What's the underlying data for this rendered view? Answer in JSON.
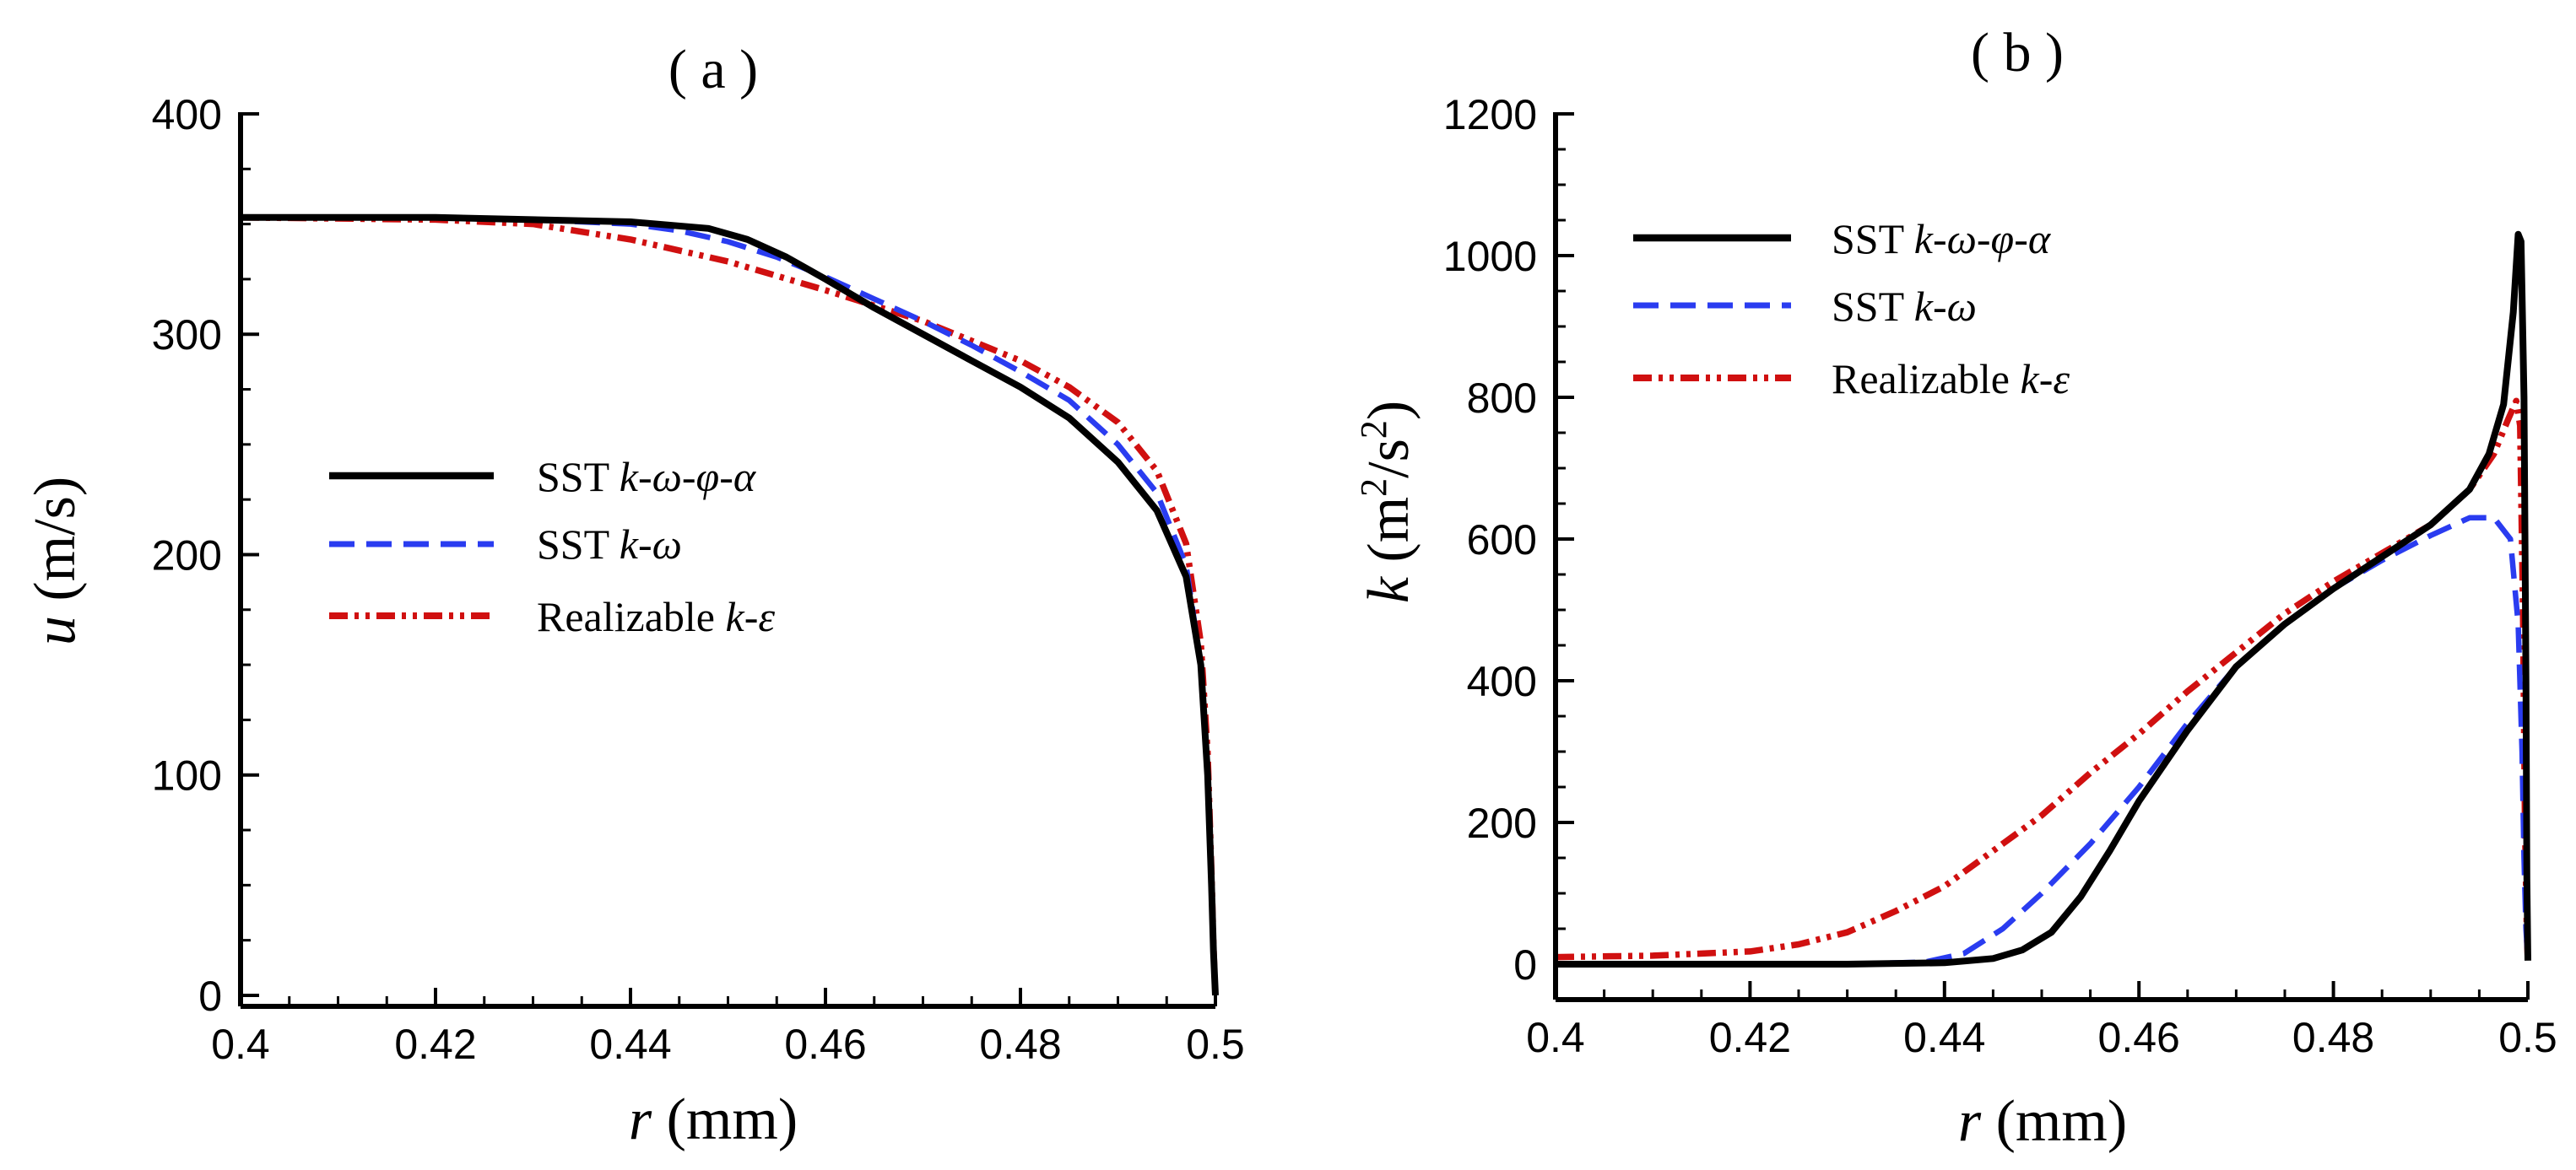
{
  "chart_data": [
    {
      "type": "line",
      "panel_label": "( a )",
      "panel_letter": "a",
      "xlabel": "r (mm)",
      "xlabel_var": "r",
      "xlabel_unit": " (mm)",
      "ylabel": "u (m/s)",
      "ylabel_var": "u",
      "ylabel_unit": " (m/s)",
      "xlim": [
        0.4,
        0.5
      ],
      "ylim": [
        -5,
        400
      ],
      "xticks": [
        "0.4",
        "0.42",
        "0.44",
        "0.46",
        "0.48",
        "0.5"
      ],
      "xtick_values": [
        0.4,
        0.42,
        0.44,
        0.46,
        0.48,
        0.5
      ],
      "yticks": [
        "0",
        "100",
        "200",
        "300",
        "400"
      ],
      "ytick_values": [
        0,
        100,
        200,
        300,
        400
      ],
      "legend_position": "center-left",
      "series": [
        {
          "name": "SST k-ω-φ-α",
          "legend_plain": "SST ",
          "legend_italic": "k-ω-φ-α",
          "color": "#000000",
          "style": "solid",
          "x": [
            0.4,
            0.42,
            0.44,
            0.448,
            0.452,
            0.456,
            0.46,
            0.465,
            0.47,
            0.475,
            0.48,
            0.485,
            0.49,
            0.494,
            0.497,
            0.4985,
            0.4992,
            0.4996,
            0.4998,
            0.5
          ],
          "y": [
            353,
            353,
            351,
            348,
            343,
            335,
            325,
            312,
            300,
            288,
            276,
            262,
            242,
            220,
            190,
            150,
            100,
            50,
            20,
            0
          ]
        },
        {
          "name": "SST k-ω",
          "legend_plain": "SST ",
          "legend_italic": "k-ω",
          "color": "#2a3cf0",
          "style": "dashed",
          "x": [
            0.4,
            0.42,
            0.43,
            0.44,
            0.445,
            0.45,
            0.455,
            0.46,
            0.465,
            0.47,
            0.475,
            0.48,
            0.485,
            0.49,
            0.494,
            0.497,
            0.4985,
            0.4992,
            0.4996,
            0.4998,
            0.5
          ],
          "y": [
            353,
            353,
            352,
            350,
            347,
            342,
            335,
            326,
            316,
            306,
            295,
            283,
            270,
            250,
            228,
            195,
            150,
            100,
            50,
            20,
            0
          ]
        },
        {
          "name": "Realizable k-ε",
          "legend_plain": "Realizable  ",
          "legend_italic": "k-ε",
          "color": "#d01010",
          "style": "dashdotdot",
          "x": [
            0.4,
            0.42,
            0.43,
            0.44,
            0.45,
            0.46,
            0.47,
            0.48,
            0.485,
            0.49,
            0.494,
            0.497,
            0.4985,
            0.4992,
            0.4996,
            0.4998,
            0.5
          ],
          "y": [
            353,
            352,
            350,
            343,
            333,
            320,
            306,
            288,
            276,
            260,
            238,
            205,
            160,
            110,
            55,
            22,
            0
          ]
        }
      ]
    },
    {
      "type": "line",
      "panel_label": "( b )",
      "panel_letter": "b",
      "xlabel": "r (mm)",
      "xlabel_var": "r",
      "xlabel_unit": " (mm)",
      "ylabel": "k (m2/s2)",
      "ylabel_var": "k",
      "ylabel_unit_pre": " (m",
      "ylabel_sup1": "2",
      "ylabel_unit_mid": "/s",
      "ylabel_sup2": "2",
      "ylabel_unit_post": ")",
      "xlim": [
        0.4,
        0.5
      ],
      "ylim": [
        -50,
        1200
      ],
      "xticks": [
        "0.4",
        "0.42",
        "0.44",
        "0.46",
        "0.48",
        "0.5"
      ],
      "xtick_values": [
        0.4,
        0.42,
        0.44,
        0.46,
        0.48,
        0.5
      ],
      "yticks": [
        "0",
        "200",
        "400",
        "600",
        "800",
        "1000",
        "1200"
      ],
      "ytick_values": [
        0,
        200,
        400,
        600,
        800,
        1000,
        1200
      ],
      "legend_position": "top-left",
      "series": [
        {
          "name": "SST k-ω-φ-α",
          "legend_plain": "SST ",
          "legend_italic": "k-ω-φ-α",
          "color": "#000000",
          "style": "solid",
          "x": [
            0.4,
            0.43,
            0.44,
            0.445,
            0.448,
            0.451,
            0.454,
            0.457,
            0.46,
            0.465,
            0.47,
            0.475,
            0.48,
            0.485,
            0.49,
            0.494,
            0.496,
            0.4975,
            0.4985,
            0.499,
            0.4993,
            0.4996,
            0.4998,
            0.4999,
            0.5
          ],
          "y": [
            0,
            0,
            2,
            8,
            20,
            45,
            95,
            160,
            230,
            330,
            420,
            480,
            530,
            575,
            620,
            670,
            720,
            790,
            920,
            1030,
            1020,
            800,
            400,
            120,
            5
          ]
        },
        {
          "name": "SST k-ω",
          "legend_plain": "SST ",
          "legend_italic": "k-ω",
          "color": "#2a3cf0",
          "style": "dashed",
          "x": [
            0.4,
            0.43,
            0.438,
            0.442,
            0.446,
            0.45,
            0.455,
            0.46,
            0.465,
            0.47,
            0.475,
            0.48,
            0.485,
            0.49,
            0.494,
            0.4965,
            0.4982,
            0.499,
            0.4994,
            0.4996,
            0.4998,
            0.5
          ],
          "y": [
            0,
            0,
            3,
            15,
            50,
            100,
            170,
            250,
            340,
            420,
            480,
            530,
            570,
            605,
            630,
            630,
            600,
            480,
            300,
            150,
            50,
            5
          ]
        },
        {
          "name": "Realizable k-ε",
          "legend_plain": "Realizable  ",
          "legend_italic": "k-ε",
          "color": "#d01010",
          "style": "dashdotdot",
          "x": [
            0.4,
            0.41,
            0.42,
            0.425,
            0.43,
            0.435,
            0.44,
            0.445,
            0.45,
            0.455,
            0.46,
            0.465,
            0.47,
            0.475,
            0.48,
            0.485,
            0.49,
            0.494,
            0.4965,
            0.498,
            0.4988,
            0.4992,
            0.4995,
            0.4997,
            0.4999,
            0.5
          ],
          "y": [
            10,
            12,
            18,
            28,
            45,
            75,
            110,
            160,
            210,
            270,
            325,
            385,
            440,
            495,
            540,
            580,
            620,
            670,
            720,
            770,
            795,
            760,
            500,
            200,
            40,
            5
          ]
        }
      ]
    }
  ]
}
